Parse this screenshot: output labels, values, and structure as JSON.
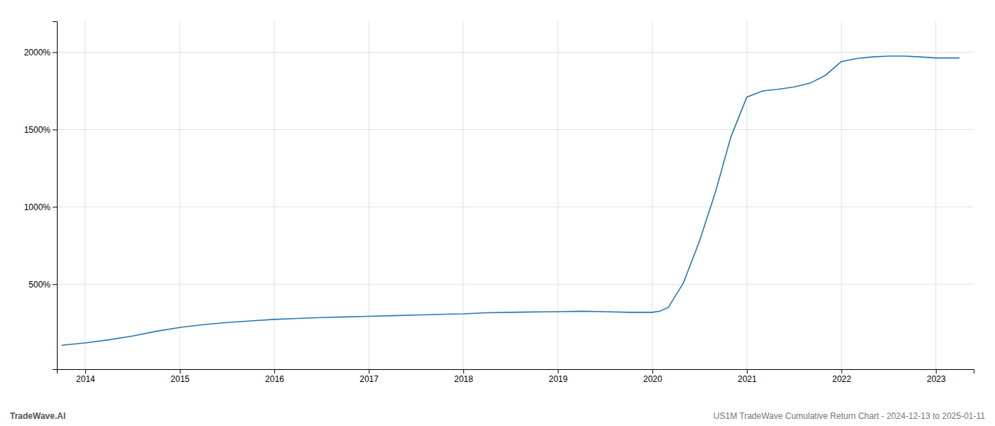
{
  "chart_data": {
    "type": "line",
    "x": [
      2013.75,
      2014.0,
      2014.25,
      2014.5,
      2014.75,
      2015.0,
      2015.25,
      2015.5,
      2015.75,
      2016.0,
      2016.25,
      2016.5,
      2016.75,
      2017.0,
      2017.25,
      2017.5,
      2017.75,
      2018.0,
      2018.25,
      2018.5,
      2018.75,
      2019.0,
      2019.25,
      2019.5,
      2019.75,
      2020.0,
      2020.08,
      2020.17,
      2020.33,
      2020.5,
      2020.67,
      2020.83,
      2021.0,
      2021.17,
      2021.33,
      2021.5,
      2021.67,
      2021.83,
      2022.0,
      2022.17,
      2022.33,
      2022.5,
      2022.67,
      2022.83,
      2023.0,
      2023.25
    ],
    "values": [
      105,
      120,
      140,
      165,
      195,
      220,
      238,
      252,
      262,
      272,
      278,
      284,
      288,
      292,
      296,
      300,
      305,
      308,
      315,
      318,
      320,
      322,
      325,
      322,
      318,
      318,
      325,
      350,
      510,
      780,
      1100,
      1450,
      1710,
      1750,
      1760,
      1775,
      1800,
      1850,
      1940,
      1960,
      1970,
      1975,
      1975,
      1970,
      1963,
      1963
    ],
    "color": "#2878b5",
    "xlim": [
      2013.7,
      2023.4
    ],
    "xticks": [
      2014,
      2015,
      2016,
      2017,
      2018,
      2019,
      2020,
      2021,
      2022,
      2023
    ],
    "ylim": [
      -50,
      2200
    ],
    "yticks": [
      {
        "value": 500,
        "label": "500%"
      },
      {
        "value": 1000,
        "label": "1000%"
      },
      {
        "value": 1500,
        "label": "1500%"
      },
      {
        "value": 2000,
        "label": "2000%"
      }
    ],
    "grid": true,
    "annotations": [
      "TradeWave.AI",
      "US1M TradeWave Cumulative Return Chart - 2024-12-13 to 2025-01-11"
    ]
  }
}
